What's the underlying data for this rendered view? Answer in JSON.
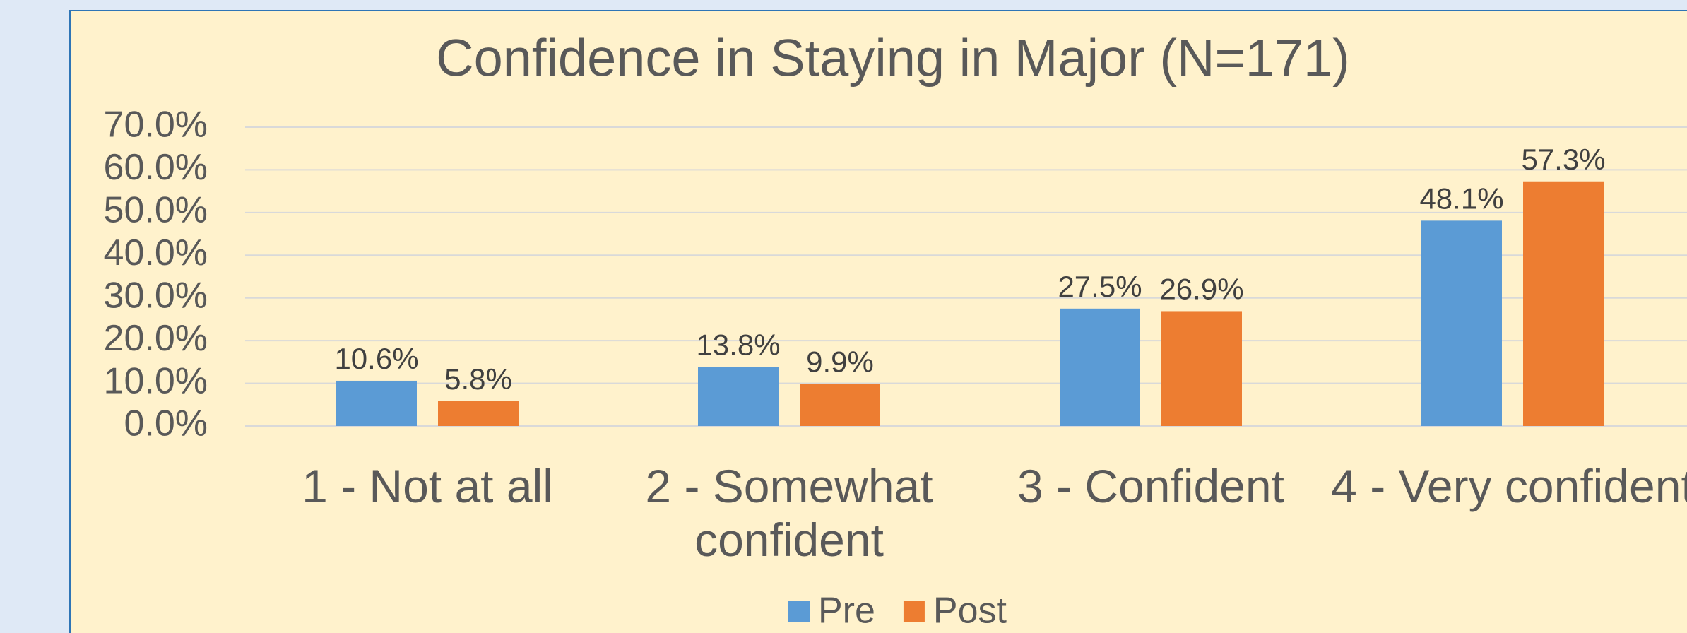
{
  "chart_data": {
    "type": "bar",
    "title": "Confidence in Staying in Major (N=171)",
    "categories": [
      "1 - Not at all",
      "2 - Somewhat confident",
      "3 - Confident",
      "4 - Very confident"
    ],
    "series": [
      {
        "name": "Pre",
        "color": "#5b9bd5",
        "values": [
          10.6,
          13.8,
          27.5,
          48.1
        ],
        "value_labels": [
          "10.6%",
          "13.8%",
          "27.5%",
          "48.1%"
        ]
      },
      {
        "name": "Post",
        "color": "#ed7d31",
        "values": [
          5.8,
          9.9,
          26.9,
          57.3
        ],
        "value_labels": [
          "5.8%",
          "9.9%",
          "26.9%",
          "57.3%"
        ]
      }
    ],
    "ylim": [
      0,
      70
    ],
    "yticks": [
      {
        "value": 0,
        "label": "0.0%"
      },
      {
        "value": 10,
        "label": "10.0%"
      },
      {
        "value": 20,
        "label": "20.0%"
      },
      {
        "value": 30,
        "label": "30.0%"
      },
      {
        "value": 40,
        "label": "40.0%"
      },
      {
        "value": 50,
        "label": "50.0%"
      },
      {
        "value": 60,
        "label": "60.0%"
      },
      {
        "value": 70,
        "label": "70.0%"
      }
    ],
    "grid": true,
    "legend": "bottom"
  }
}
